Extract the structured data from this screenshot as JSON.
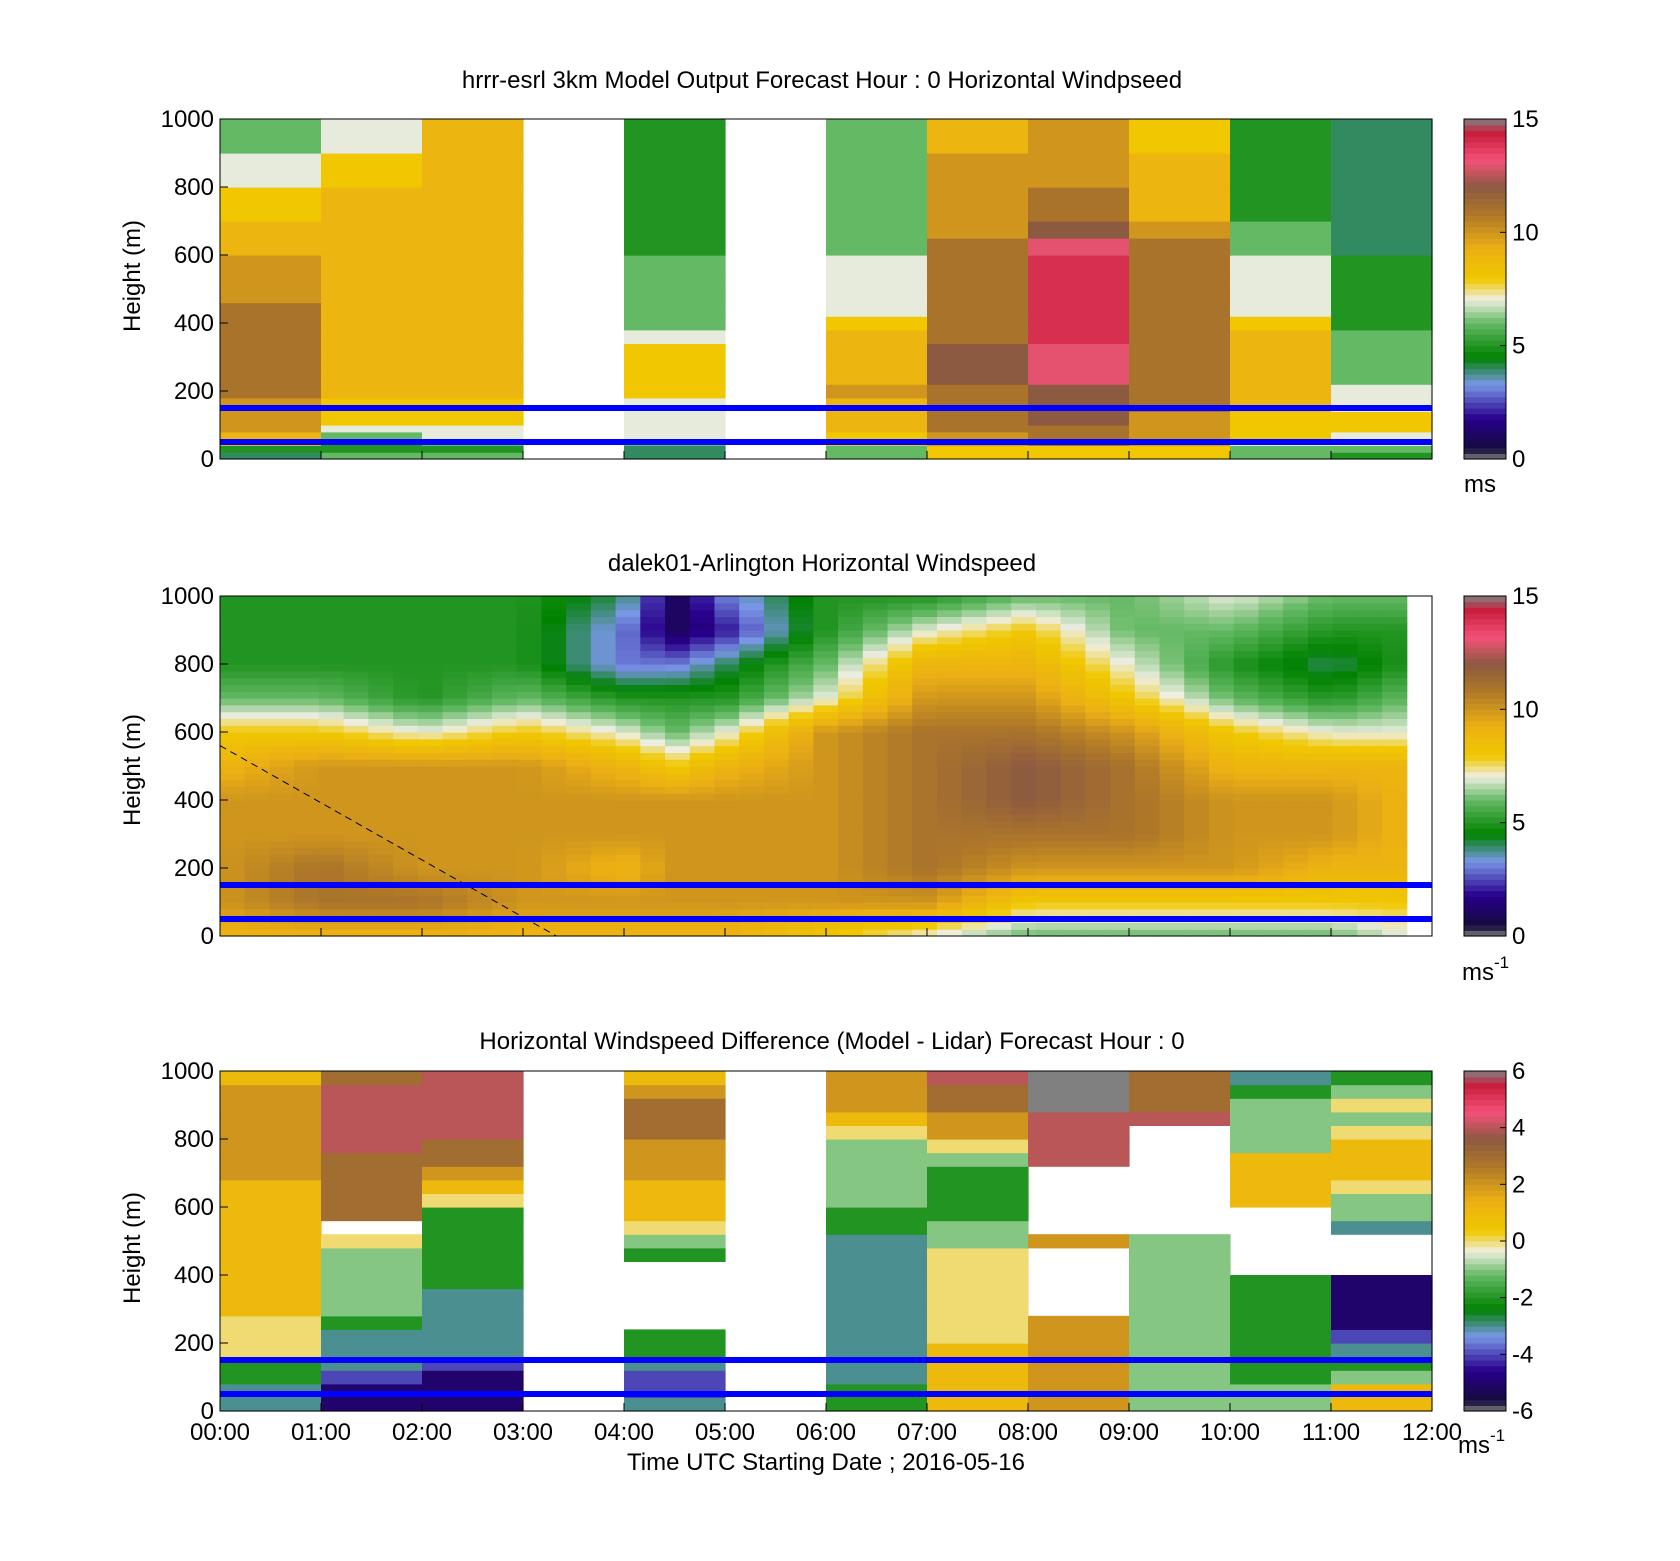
{
  "figure": {
    "time_axis_label": "Time UTC  Starting Date ; 2016-05-16",
    "time_ticks": [
      "00:00",
      "01:00",
      "02:00",
      "03:00",
      "04:00",
      "05:00",
      "06:00",
      "07:00",
      "08:00",
      "09:00",
      "10:00",
      "11:00",
      "12:00"
    ]
  },
  "chart_data": [
    {
      "type": "heatmap",
      "title": "hrrr-esrl 3km Model Output   Forecast Hour : 0 Horizontal Windpseed",
      "xlabel": "",
      "ylabel": "Height (m)",
      "ylim": [
        0,
        1000
      ],
      "yticks": [
        "0",
        "200",
        "400",
        "600",
        "800",
        "1000"
      ],
      "colorbar": {
        "min": 0,
        "max": 15,
        "ticks": [
          "0",
          "5",
          "10",
          "15"
        ],
        "unit_label": "ms"
      },
      "reference_lines_m": [
        50,
        150
      ],
      "reference_line_color": "#0000ff",
      "x_cols_hours": [
        0,
        1,
        2,
        3,
        4,
        5,
        6,
        7,
        8,
        9,
        10,
        11
      ],
      "heights_m": [
        0,
        20,
        40,
        60,
        80,
        100,
        140,
        180,
        220,
        260,
        300,
        340,
        380,
        420,
        460,
        500,
        550,
        600,
        650,
        700,
        800,
        900,
        1000
      ],
      "values": [
        [
          4,
          6,
          6,
          null,
          4,
          null,
          6,
          8,
          8,
          8,
          6,
          5
        ],
        [
          5,
          5,
          5,
          null,
          4,
          null,
          6,
          8,
          8,
          8,
          6,
          6
        ],
        [
          9,
          5,
          6,
          null,
          6,
          null,
          8,
          10,
          11,
          10,
          7,
          7
        ],
        [
          9,
          6,
          7,
          null,
          7,
          null,
          8,
          10,
          11,
          10,
          8,
          7
        ],
        [
          10,
          7,
          7,
          null,
          7,
          null,
          9,
          11,
          11,
          10,
          8,
          8
        ],
        [
          10,
          8,
          8,
          null,
          7,
          null,
          9,
          11,
          12,
          10,
          8,
          8
        ],
        [
          10,
          8,
          8,
          null,
          7,
          null,
          9,
          11,
          12,
          11,
          9,
          7
        ],
        [
          11,
          9,
          9,
          null,
          8,
          null,
          10,
          11,
          12,
          11,
          9,
          7
        ],
        [
          11,
          9,
          9,
          null,
          8,
          null,
          9,
          12,
          13,
          11,
          9,
          6
        ],
        [
          11,
          9,
          9,
          null,
          8,
          null,
          9,
          12,
          13,
          11,
          9,
          6
        ],
        [
          11,
          9,
          9,
          null,
          8,
          null,
          9,
          12,
          13,
          11,
          9,
          6
        ],
        [
          11,
          9,
          9,
          null,
          7,
          null,
          9,
          11,
          14,
          11,
          9,
          6
        ],
        [
          11,
          9,
          9,
          null,
          6,
          null,
          8,
          11,
          14,
          11,
          8,
          5
        ],
        [
          11,
          9,
          9,
          null,
          6,
          null,
          7,
          11,
          14,
          11,
          7,
          5
        ],
        [
          10,
          9,
          9,
          null,
          6,
          null,
          7,
          11,
          14,
          11,
          7,
          5
        ],
        [
          10,
          9,
          9,
          null,
          6,
          null,
          7,
          11,
          14,
          11,
          7,
          5
        ],
        [
          10,
          9,
          9,
          null,
          6,
          null,
          7,
          11,
          14,
          11,
          7,
          5
        ],
        [
          9,
          9,
          9,
          null,
          5,
          null,
          6,
          11,
          13,
          11,
          6,
          4
        ],
        [
          9,
          9,
          9,
          null,
          5,
          null,
          6,
          10,
          12,
          10,
          6,
          4
        ],
        [
          8,
          9,
          9,
          null,
          5,
          null,
          6,
          10,
          11,
          9,
          5,
          4
        ],
        [
          7,
          8,
          9,
          null,
          5,
          null,
          6,
          10,
          10,
          9,
          5,
          4
        ],
        [
          6,
          7,
          9,
          null,
          5,
          null,
          6,
          9,
          10,
          8,
          5,
          4
        ]
      ]
    },
    {
      "type": "heatmap",
      "title": "dalek01-Arlington  Horizontal Windspeed",
      "xlabel": "",
      "ylabel": "Height (m)",
      "ylim": [
        0,
        1000
      ],
      "yticks": [
        "0",
        "200",
        "400",
        "600",
        "800",
        "1000"
      ],
      "colorbar": {
        "min": 0,
        "max": 15,
        "ticks": [
          "0",
          "5",
          "10",
          "15"
        ],
        "unit_label": "ms",
        "unit_exponent": "-1"
      },
      "reference_lines_m": [
        50,
        150
      ],
      "reference_line_color": "#0000ff",
      "overlay_line_m": {
        "from": [
          0.0,
          560
        ],
        "to": [
          3.33,
          0
        ],
        "style": "dashed"
      },
      "x_range_hours": [
        0,
        11.75
      ],
      "profile_anchor_hours": [
        0,
        1,
        2,
        3,
        4,
        4.5,
        5,
        6,
        7,
        8,
        9,
        10,
        11,
        11.75
      ],
      "profile_heights_m": [
        0,
        100,
        200,
        300,
        400,
        500,
        600,
        700,
        800,
        900,
        1000
      ],
      "profiles": [
        [
          9,
          10,
          10,
          10,
          10,
          9,
          8,
          6,
          5,
          5,
          5
        ],
        [
          9,
          11,
          11,
          10,
          10,
          10,
          8,
          6,
          5,
          5,
          5
        ],
        [
          9,
          11,
          10,
          10,
          10,
          10,
          7,
          5,
          5,
          5,
          5
        ],
        [
          9,
          10,
          10,
          10,
          10,
          10,
          8,
          6,
          5,
          5,
          5
        ],
        [
          9,
          10,
          9,
          10,
          10,
          9,
          7,
          5,
          3,
          3,
          4
        ],
        [
          9,
          10,
          10,
          10,
          10,
          8,
          6,
          5,
          3,
          1,
          1
        ],
        [
          9,
          10,
          10,
          10,
          10,
          9,
          7,
          5,
          4,
          2,
          3
        ],
        [
          8,
          10,
          10,
          10,
          10,
          10,
          10,
          7,
          6,
          5,
          5
        ],
        [
          7,
          10,
          11,
          11,
          11,
          11,
          11,
          10,
          9,
          7,
          5
        ],
        [
          6,
          8,
          10,
          11,
          12,
          12,
          11,
          10,
          9,
          8,
          6
        ],
        [
          6,
          8,
          10,
          11,
          11,
          11,
          10,
          8,
          7,
          6,
          6
        ],
        [
          6,
          8,
          10,
          10,
          10,
          9,
          8,
          6,
          5,
          6,
          7
        ],
        [
          6,
          8,
          9,
          10,
          10,
          9,
          7,
          5,
          4,
          5,
          6
        ],
        [
          7,
          8,
          9,
          9,
          9,
          9,
          7,
          6,
          5,
          5,
          6
        ]
      ]
    },
    {
      "type": "heatmap",
      "title": "Horizontal Windspeed Difference (Model - Lidar) Forecast Hour : 0",
      "xlabel": "Time UTC  Starting Date ; 2016-05-16",
      "ylabel": "Height (m)",
      "ylim": [
        0,
        1000
      ],
      "yticks": [
        "0",
        "200",
        "400",
        "600",
        "800",
        "1000"
      ],
      "colorbar": {
        "min": -6,
        "max": 6,
        "ticks": [
          "-6",
          "-4",
          "-2",
          "0",
          "2",
          "4",
          "6"
        ],
        "unit_label": "ms",
        "unit_exponent": "-1"
      },
      "reference_lines_m": [
        50,
        150
      ],
      "reference_line_color": "#0000ff",
      "x_cols_hours": [
        0,
        1,
        2,
        3,
        4,
        5,
        6,
        7,
        8,
        9,
        10,
        11
      ],
      "heights_m": [
        0,
        40,
        80,
        120,
        160,
        200,
        240,
        280,
        320,
        360,
        400,
        440,
        480,
        520,
        560,
        600,
        640,
        680,
        720,
        760,
        800,
        840,
        880,
        920,
        960,
        1000
      ],
      "values": [
        [
          -3,
          -5,
          -5,
          null,
          -3,
          null,
          -2,
          1,
          2,
          -1,
          -1,
          1
        ],
        [
          -3,
          -5,
          -5,
          null,
          -4,
          null,
          -2,
          1,
          2,
          -1,
          -1,
          1
        ],
        [
          -2,
          -4,
          -5,
          null,
          -4,
          null,
          -3,
          1,
          2,
          -1,
          -2,
          -1
        ],
        [
          -2,
          -3,
          -4,
          null,
          -3,
          null,
          -3,
          1,
          2,
          -1,
          -2,
          -2
        ],
        [
          0,
          -3,
          -3,
          null,
          -2,
          null,
          -3,
          1,
          2,
          -1,
          -2,
          -3
        ],
        [
          0,
          -3,
          -3,
          null,
          -2,
          null,
          -3,
          0,
          2,
          -1,
          -2,
          -4
        ],
        [
          0,
          -2,
          -3,
          null,
          null,
          null,
          -3,
          0,
          2,
          -1,
          -2,
          -5
        ],
        [
          1,
          -1,
          -3,
          null,
          null,
          null,
          -3,
          0,
          null,
          -1,
          -2,
          -5
        ],
        [
          1,
          -1,
          -3,
          null,
          null,
          null,
          -3,
          0,
          null,
          -1,
          -2,
          -5
        ],
        [
          1,
          -1,
          -2,
          null,
          null,
          null,
          -3,
          0,
          null,
          -1,
          -2,
          -5
        ],
        [
          1,
          -1,
          -2,
          null,
          null,
          null,
          -3,
          0,
          null,
          -1,
          null,
          null
        ],
        [
          1,
          -1,
          -2,
          null,
          -2,
          null,
          -3,
          0,
          null,
          -1,
          null,
          null
        ],
        [
          1,
          0,
          -2,
          null,
          -1,
          null,
          -3,
          -1,
          2,
          -1,
          null,
          null
        ],
        [
          1,
          null,
          -2,
          null,
          0,
          null,
          -2,
          -1,
          null,
          null,
          null,
          -3
        ],
        [
          1,
          3,
          -2,
          null,
          1,
          null,
          -2,
          -2,
          null,
          null,
          null,
          -1
        ],
        [
          1,
          3,
          0,
          null,
          1,
          null,
          -1,
          -2,
          null,
          null,
          1,
          -1
        ],
        [
          1,
          3,
          1,
          null,
          1,
          null,
          -1,
          -2,
          null,
          null,
          1,
          0
        ],
        [
          2,
          3,
          2,
          null,
          2,
          null,
          -1,
          -2,
          null,
          null,
          1,
          1
        ],
        [
          2,
          3,
          3,
          null,
          2,
          null,
          -1,
          -1,
          4,
          null,
          1,
          1
        ],
        [
          2,
          4,
          3,
          null,
          2,
          null,
          -1,
          0,
          4,
          null,
          -1,
          1
        ],
        [
          2,
          4,
          4,
          null,
          3,
          null,
          0,
          2,
          4,
          null,
          -1,
          0
        ],
        [
          2,
          4,
          4,
          null,
          3,
          null,
          1,
          2,
          4,
          4,
          -1,
          -1
        ],
        [
          2,
          4,
          4,
          null,
          3,
          null,
          2,
          3,
          -6,
          3,
          -1,
          0
        ],
        [
          2,
          4,
          4,
          null,
          2,
          null,
          2,
          3,
          -6,
          3,
          -2,
          -1
        ],
        [
          1,
          3,
          4,
          null,
          1,
          null,
          2,
          4,
          -6,
          3,
          -3,
          -2
        ]
      ]
    }
  ]
}
